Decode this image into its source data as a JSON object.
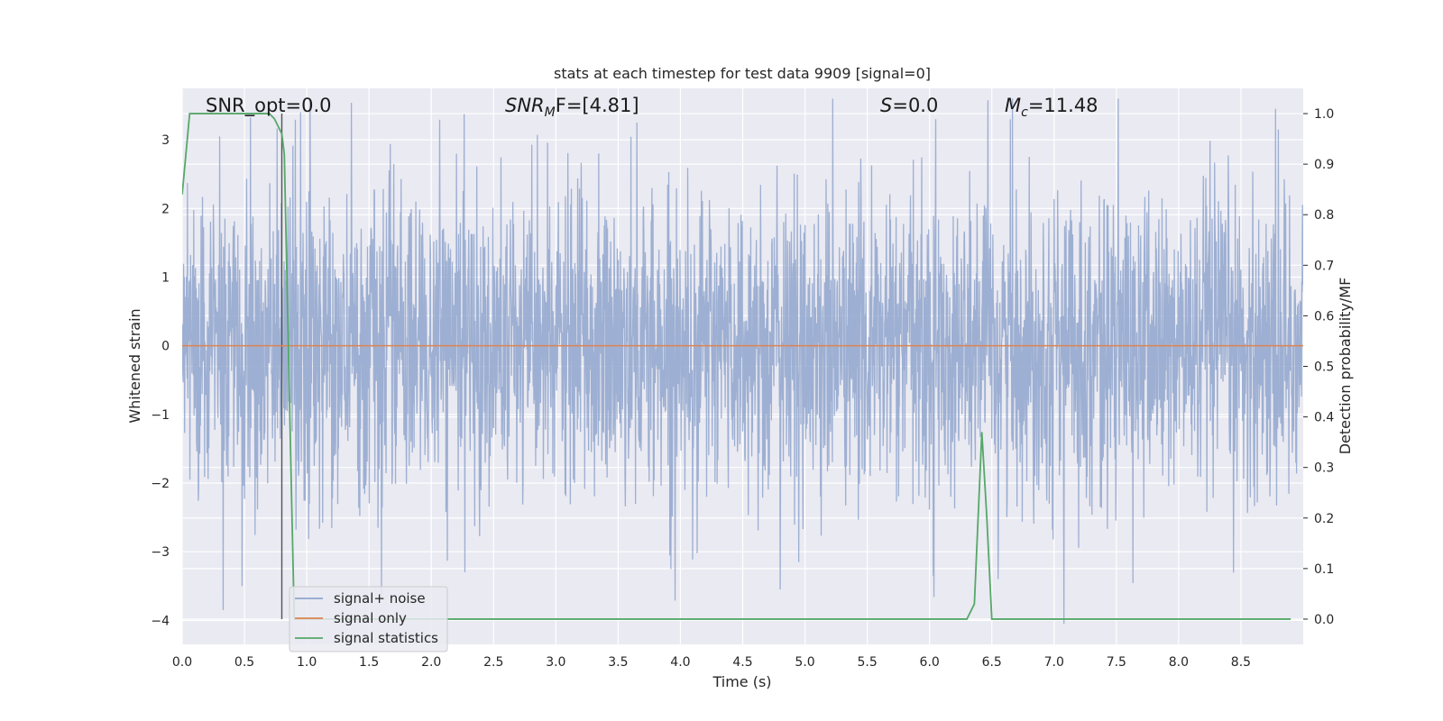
{
  "chart_data": {
    "type": "line",
    "title": "stats at each timestep for test data 9909 [signal=0]",
    "xlabel": "Time (s)",
    "ylabel": "Whitened strain",
    "y2label": "Detection probability/MF",
    "xlim": [
      0,
      9.0
    ],
    "ylim": [
      -4.35,
      3.75
    ],
    "y2lim": [
      -0.05,
      1.05
    ],
    "xticks": [
      "0.0",
      "0.5",
      "1.0",
      "1.5",
      "2.0",
      "2.5",
      "3.0",
      "3.5",
      "4.0",
      "4.5",
      "5.0",
      "5.5",
      "6.0",
      "6.5",
      "7.0",
      "7.5",
      "8.0",
      "8.5"
    ],
    "yticks": [
      "3",
      "2",
      "1",
      "0",
      "−1",
      "−2",
      "−3",
      "−4"
    ],
    "y2ticks": [
      "1.0",
      "0.9",
      "0.8",
      "0.7",
      "0.6",
      "0.5",
      "0.4",
      "0.3",
      "0.2",
      "0.1",
      "0.0"
    ],
    "grid": true,
    "legend_placement": "lower-left",
    "annotations": {
      "snr_opt": "SNR_opt=0.0",
      "snr_mf_base": "SNR",
      "snr_mf_sub": "M",
      "snr_mf_rest": "F=[4.81]",
      "s_base": "S",
      "s_rest": "=0.0",
      "mc_base": "M",
      "mc_sub": "c",
      "mc_rest": "=11.48"
    },
    "vline_x": 0.8,
    "series": [
      {
        "name": "signal+ noise",
        "color": "#8fa5cc",
        "noise_amplitude": 1.1,
        "notable_peaks": [
          {
            "x": 0.3,
            "y": 3.05
          },
          {
            "x": 0.95,
            "y": 3.4
          },
          {
            "x": 3.65,
            "y": 3.25
          },
          {
            "x": 6.05,
            "y": 3.3
          },
          {
            "x": 6.65,
            "y": 3.3
          },
          {
            "x": 8.8,
            "y": 3.15
          },
          {
            "x": 0.33,
            "y": -3.85
          },
          {
            "x": 0.48,
            "y": -3.5
          },
          {
            "x": 4.95,
            "y": -3.15
          },
          {
            "x": 6.03,
            "y": -3.35
          },
          {
            "x": 6.55,
            "y": -3.4
          },
          {
            "x": 7.08,
            "y": -4.05
          }
        ]
      },
      {
        "name": "signal only",
        "color": "#dd8452",
        "x": [
          0,
          9.0
        ],
        "y": [
          0,
          0
        ]
      },
      {
        "name": "signal statistics",
        "color": "#55a868",
        "axis": "right",
        "x": [
          0.0,
          0.06,
          0.1,
          0.2,
          0.4,
          0.7,
          0.74,
          0.8,
          0.82,
          0.88,
          0.9,
          1.0,
          1.5,
          2.0,
          3.0,
          4.0,
          5.0,
          6.0,
          6.3,
          6.36,
          6.42,
          6.46,
          6.5,
          6.52,
          7.0,
          8.0,
          8.9
        ],
        "y": [
          0.84,
          1.0,
          1.0,
          1.0,
          1.0,
          1.0,
          0.99,
          0.96,
          0.92,
          0.22,
          0.0,
          0.0,
          0.0,
          0.0,
          0.0,
          0.0,
          0.0,
          0.0,
          0.0,
          0.03,
          0.37,
          0.2,
          0.0,
          0.0,
          0.0,
          0.0,
          0.0
        ]
      }
    ]
  }
}
